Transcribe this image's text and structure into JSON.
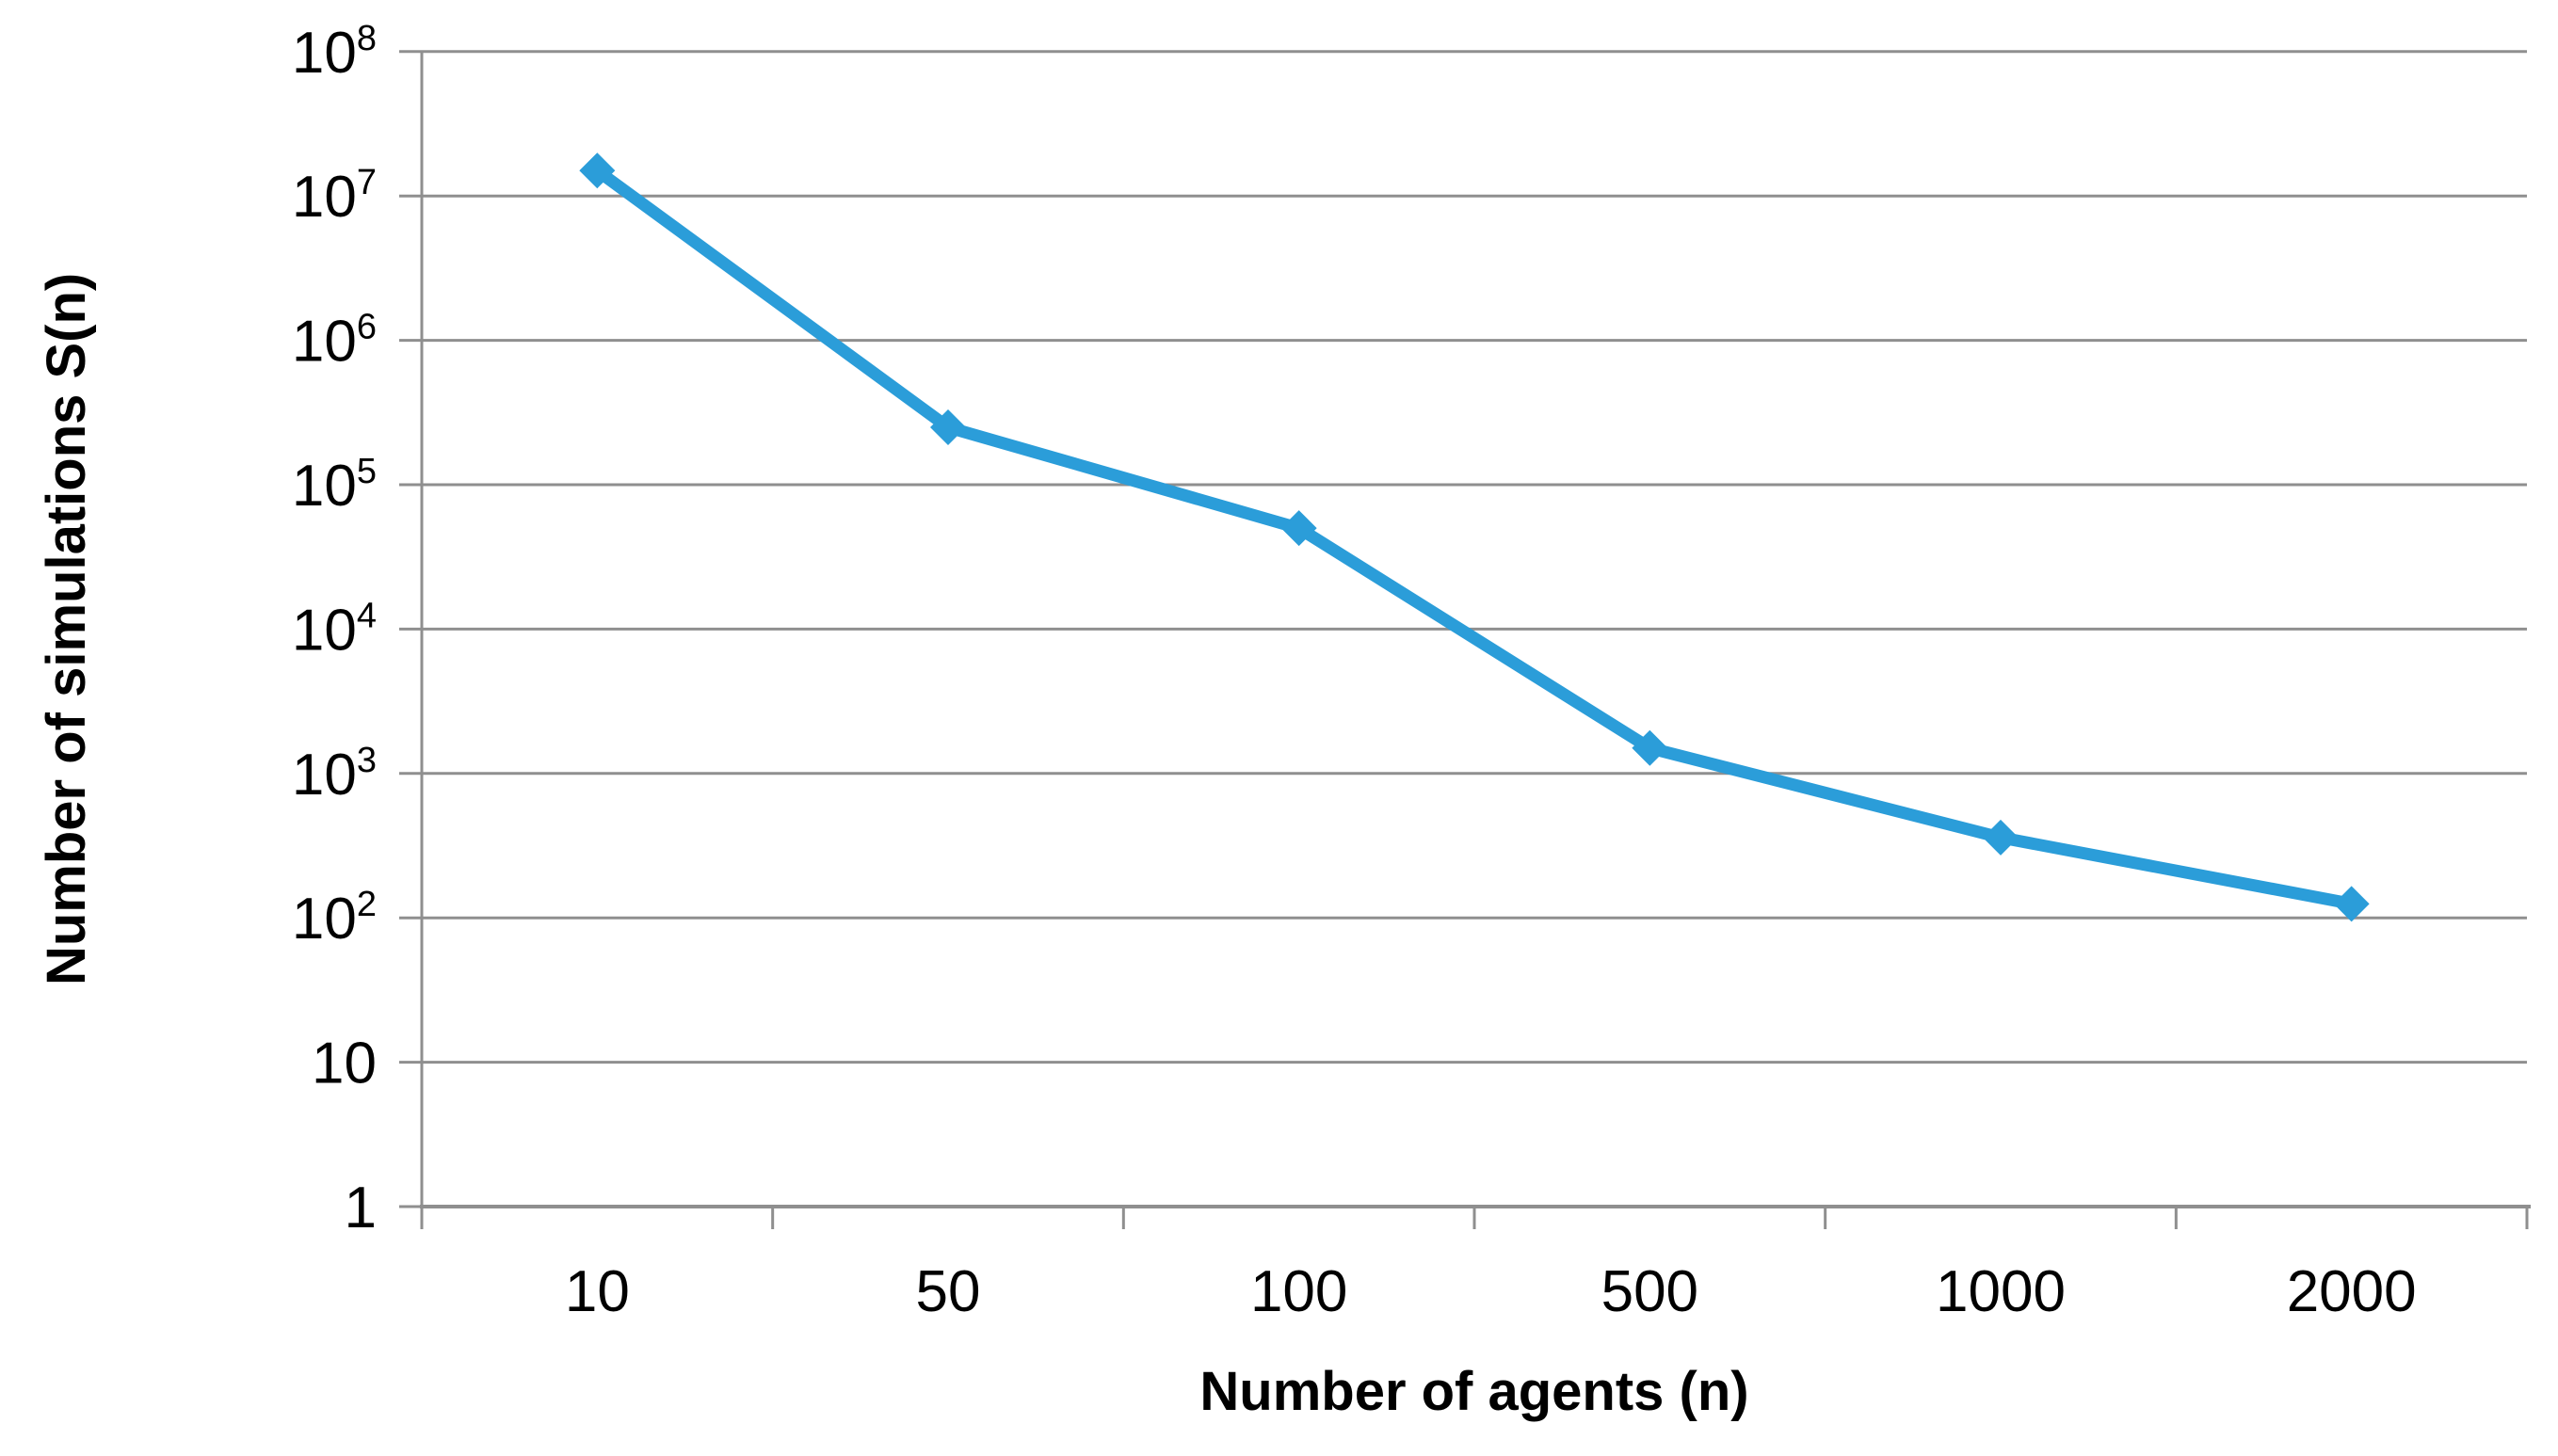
{
  "chart_data": {
    "type": "line",
    "title": "",
    "xlabel": "Number of agents (n)",
    "ylabel": "Number of simulations S(n)",
    "categories": [
      "10",
      "50",
      "100",
      "500",
      "1000",
      "2000"
    ],
    "series": [
      {
        "name": "S(n)",
        "values": [
          15000000,
          250000,
          50000,
          1500,
          360,
          125
        ]
      }
    ],
    "x_axis_type": "category",
    "y_scale": "log10",
    "ylim": [
      1,
      100000000
    ],
    "y_ticks": [
      {
        "base": "1"
      },
      {
        "base": "10"
      },
      {
        "base": "10",
        "sup": "2"
      },
      {
        "base": "10",
        "sup": "3"
      },
      {
        "base": "10",
        "sup": "4"
      },
      {
        "base": "10",
        "sup": "5"
      },
      {
        "base": "10",
        "sup": "6"
      },
      {
        "base": "10",
        "sup": "7"
      },
      {
        "base": "10",
        "sup": "8"
      }
    ],
    "grid": "horizontal-major",
    "legend_position": "none",
    "marker": "diamond",
    "colors": {
      "line": "#2B9DD9",
      "marker": "#2B9DD9",
      "gridline": "#8F8F8F",
      "axis": "#8F8F8F",
      "text": "#000000",
      "background": "#FFFFFF"
    }
  }
}
